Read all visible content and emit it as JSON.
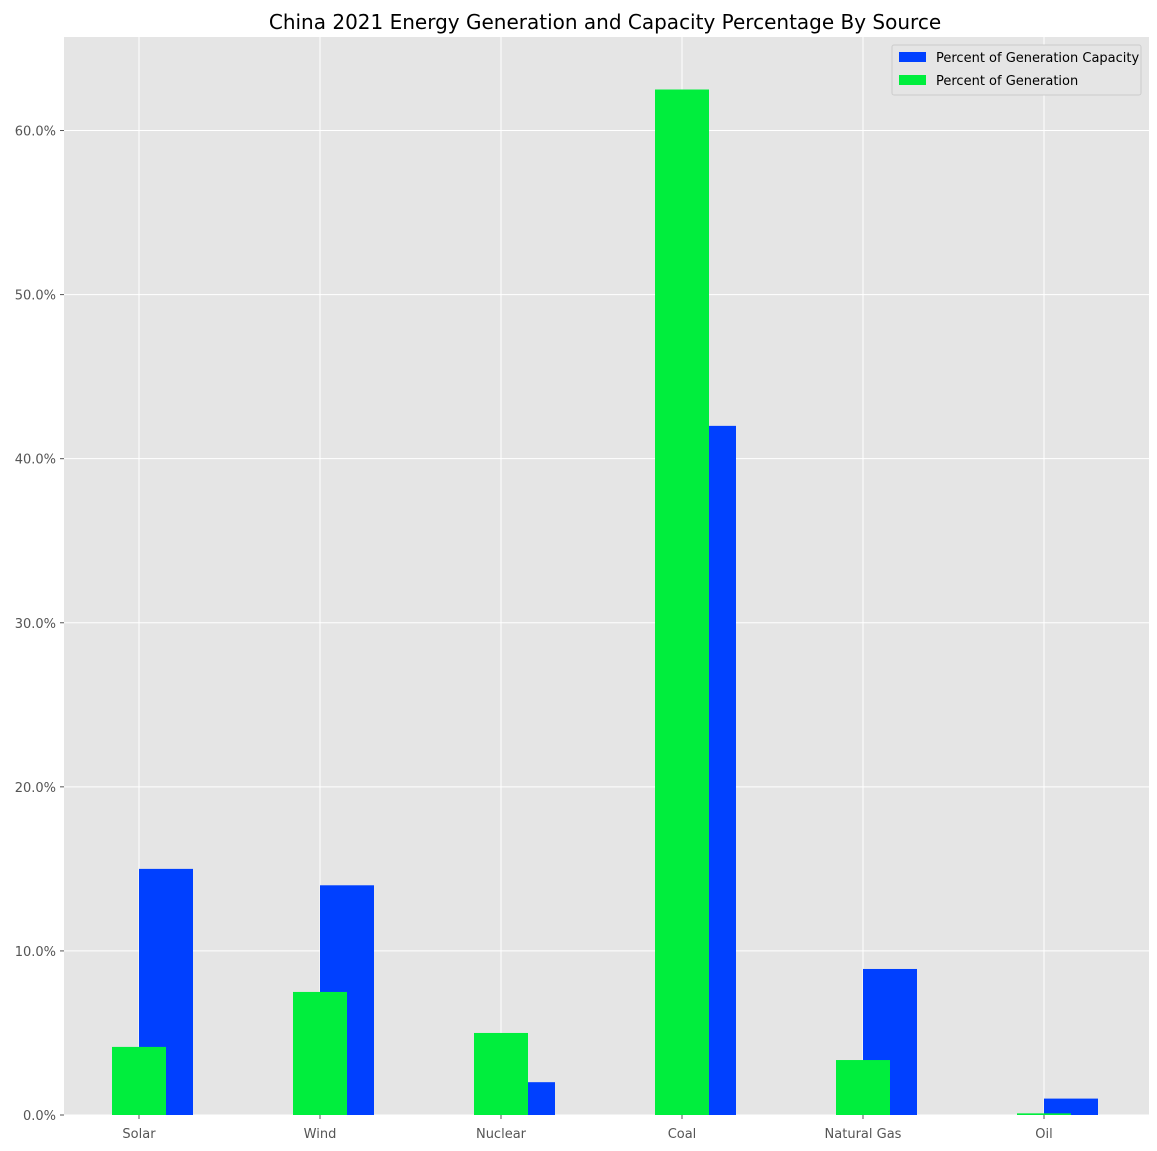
{
  "chart_data": {
    "type": "bar",
    "title": "China 2021 Energy Generation and Capacity Percentage By Source",
    "xlabel": "",
    "ylabel": "",
    "categories": [
      "Solar",
      "Wind",
      "Nuclear",
      "Coal",
      "Natural Gas",
      "Oil"
    ],
    "series": [
      {
        "name": "Percent of Generation Capacity",
        "color": "#0040ff",
        "values": [
          15.0,
          14.0,
          2.0,
          42.0,
          8.9,
          1.0
        ]
      },
      {
        "name": "Percent of Generation",
        "color": "#00ee3d",
        "values": [
          4.15,
          7.5,
          5.0,
          62.5,
          3.35,
          0.1
        ]
      }
    ],
    "ylim": [
      0,
      65.7
    ],
    "yticks": [
      0,
      10,
      20,
      30,
      40,
      50,
      60
    ],
    "ytick_labels": [
      "0.0%",
      "10.0%",
      "20.0%",
      "30.0%",
      "40.0%",
      "50.0%",
      "60.0%"
    ],
    "grid": true,
    "legend_position": "top-right",
    "background": "#e5e5e5",
    "grid_color": "#ffffff"
  }
}
